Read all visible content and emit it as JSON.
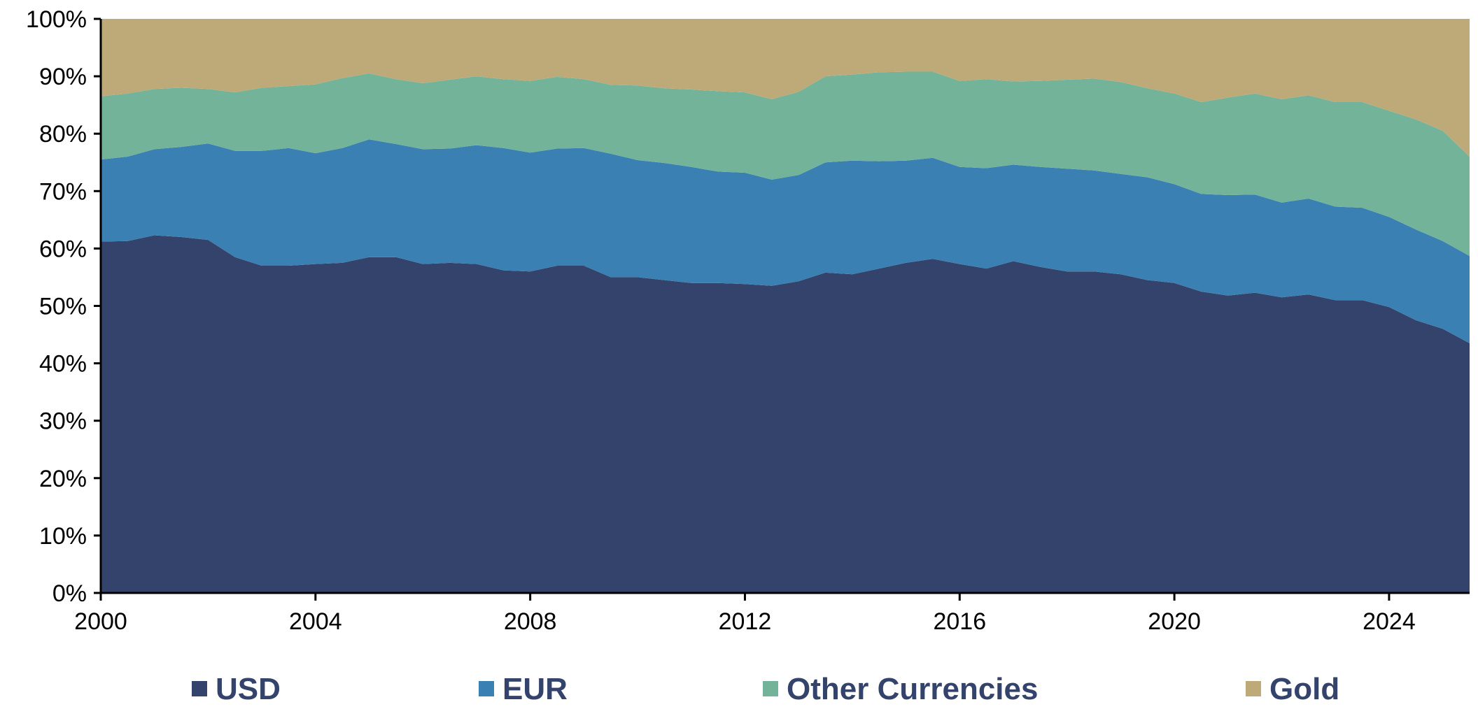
{
  "chart_data": {
    "type": "area",
    "stacked": true,
    "percent_stacked": true,
    "title": "",
    "xlabel": "",
    "ylabel": "",
    "xlim": [
      2000,
      2025.5
    ],
    "ylim": [
      0,
      100
    ],
    "x_ticks": [
      2000,
      2004,
      2008,
      2012,
      2016,
      2020,
      2024
    ],
    "x_tick_labels": [
      "2000",
      "2004",
      "2008",
      "2012",
      "2016",
      "2020",
      "2024"
    ],
    "y_ticks": [
      0,
      10,
      20,
      30,
      40,
      50,
      60,
      70,
      80,
      90,
      100
    ],
    "y_tick_labels": [
      "0%",
      "10%",
      "20%",
      "30%",
      "40%",
      "50%",
      "60%",
      "70%",
      "80%",
      "90%",
      "100%"
    ],
    "grid": false,
    "legend_position": "bottom",
    "x": [
      2000,
      2000.5,
      2001,
      2001.5,
      2002,
      2002.5,
      2003,
      2003.5,
      2004,
      2004.5,
      2005,
      2005.5,
      2006,
      2006.5,
      2007,
      2007.5,
      2008,
      2008.5,
      2009,
      2009.5,
      2010,
      2010.5,
      2011,
      2011.5,
      2012,
      2012.5,
      2013,
      2013.5,
      2014,
      2014.5,
      2015,
      2015.5,
      2016,
      2016.5,
      2017,
      2017.5,
      2018,
      2018.5,
      2019,
      2019.5,
      2020,
      2020.5,
      2021,
      2021.5,
      2022,
      2022.5,
      2023,
      2023.5,
      2024,
      2024.5,
      2025,
      2025.5
    ],
    "series": [
      {
        "name": "USD",
        "color": "#34436b",
        "values": [
          61.2,
          61.3,
          62.3,
          62.0,
          61.5,
          58.5,
          57.0,
          57.0,
          57.3,
          57.5,
          58.5,
          58.5,
          57.3,
          57.5,
          57.3,
          56.2,
          56.0,
          57.0,
          57.0,
          55.0,
          55.0,
          54.5,
          54.0,
          54.0,
          53.8,
          53.5,
          54.3,
          55.8,
          55.5,
          56.5,
          57.5,
          58.2,
          57.3,
          56.5,
          57.8,
          56.8,
          56.0,
          56.0,
          55.5,
          54.5,
          54.0,
          52.5,
          51.8,
          52.3,
          51.5,
          52.0,
          51.0,
          51.0,
          49.8,
          47.5,
          46.0,
          43.5
        ]
      },
      {
        "name": "EUR",
        "color": "#3a80b3",
        "values": [
          14.3,
          14.7,
          15.0,
          15.7,
          16.8,
          18.5,
          20.0,
          20.5,
          19.3,
          20.0,
          20.5,
          19.7,
          20.0,
          19.9,
          20.7,
          21.3,
          20.7,
          20.4,
          20.5,
          21.5,
          20.4,
          20.4,
          20.2,
          19.4,
          19.4,
          18.5,
          18.5,
          19.2,
          19.8,
          18.7,
          17.8,
          17.6,
          16.9,
          17.5,
          16.8,
          17.4,
          17.9,
          17.6,
          17.5,
          17.9,
          17.2,
          17.0,
          17.5,
          17.1,
          16.5,
          16.7,
          16.3,
          16.1,
          15.7,
          15.8,
          15.3,
          15.2
        ]
      },
      {
        "name": "Other Currencies",
        "color": "#72b39a",
        "values": [
          11.0,
          11.0,
          10.5,
          10.3,
          9.5,
          10.2,
          11.0,
          10.8,
          12.0,
          12.2,
          11.5,
          11.3,
          11.5,
          12.0,
          12.0,
          12.0,
          12.5,
          12.5,
          12.0,
          12.0,
          13.0,
          13.0,
          13.5,
          14.0,
          14.0,
          14.0,
          14.5,
          15.0,
          15.0,
          15.5,
          15.5,
          15.0,
          15.0,
          15.5,
          14.5,
          15.0,
          15.5,
          16.0,
          16.0,
          15.5,
          15.8,
          16.0,
          17.0,
          17.6,
          18.0,
          18.0,
          18.2,
          18.4,
          18.5,
          19.2,
          19.2,
          17.3
        ]
      },
      {
        "name": "Gold",
        "color": "#beaa78",
        "values": [
          13.5,
          13.0,
          12.2,
          12.0,
          12.2,
          12.8,
          12.0,
          11.7,
          11.4,
          10.3,
          9.5,
          10.5,
          11.2,
          10.6,
          10.0,
          10.5,
          10.8,
          10.1,
          10.5,
          11.5,
          11.6,
          12.1,
          12.3,
          12.6,
          12.8,
          14.0,
          12.7,
          10.0,
          9.7,
          9.3,
          9.2,
          9.2,
          10.8,
          10.5,
          10.9,
          10.8,
          10.6,
          10.4,
          11.0,
          12.1,
          13.0,
          14.5,
          13.7,
          13.0,
          14.0,
          13.3,
          14.5,
          14.5,
          16.0,
          17.5,
          19.5,
          24.0
        ]
      }
    ]
  }
}
